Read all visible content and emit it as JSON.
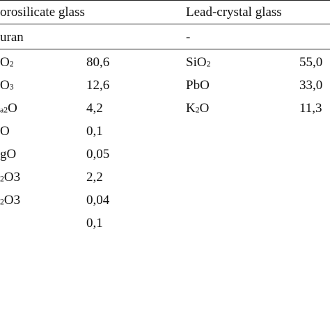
{
  "headers": {
    "left": "orosilicate glass",
    "right": "Lead-crystal glass"
  },
  "subheader": {
    "left": "uran",
    "right": "-"
  },
  "left_rows": [
    {
      "formula_main": "O",
      "formula_sub": "2",
      "formula_tail": "",
      "value": "80,6"
    },
    {
      "formula_main": "O",
      "formula_sub": "3",
      "formula_tail": "",
      "value": "12,6"
    },
    {
      "formula_main": "",
      "formula_sub": "a2",
      "formula_tail": "O",
      "value": "4,2"
    },
    {
      "formula_main": "O",
      "formula_sub": "",
      "formula_tail": "",
      "value": "0,1"
    },
    {
      "formula_main": "gO",
      "formula_sub": "",
      "formula_tail": "",
      "value": "0,05"
    },
    {
      "formula_main": "",
      "formula_sub": "2",
      "formula_tail": "O3",
      "value": "2,2"
    },
    {
      "formula_main": "",
      "formula_sub": "2",
      "formula_tail": "O3",
      "value": "0,04"
    },
    {
      "formula_main": "",
      "formula_sub": "",
      "formula_tail": "",
      "value": "0,1"
    }
  ],
  "right_rows": [
    {
      "formula_main": "SiO",
      "formula_sub": "2",
      "formula_tail": "",
      "value": "55,0"
    },
    {
      "formula_main": "PbO",
      "formula_sub": "",
      "formula_tail": "",
      "value": "33,0"
    },
    {
      "formula_main": "K",
      "formula_sub": "2",
      "formula_tail": "O",
      "value": "11,3"
    }
  ]
}
